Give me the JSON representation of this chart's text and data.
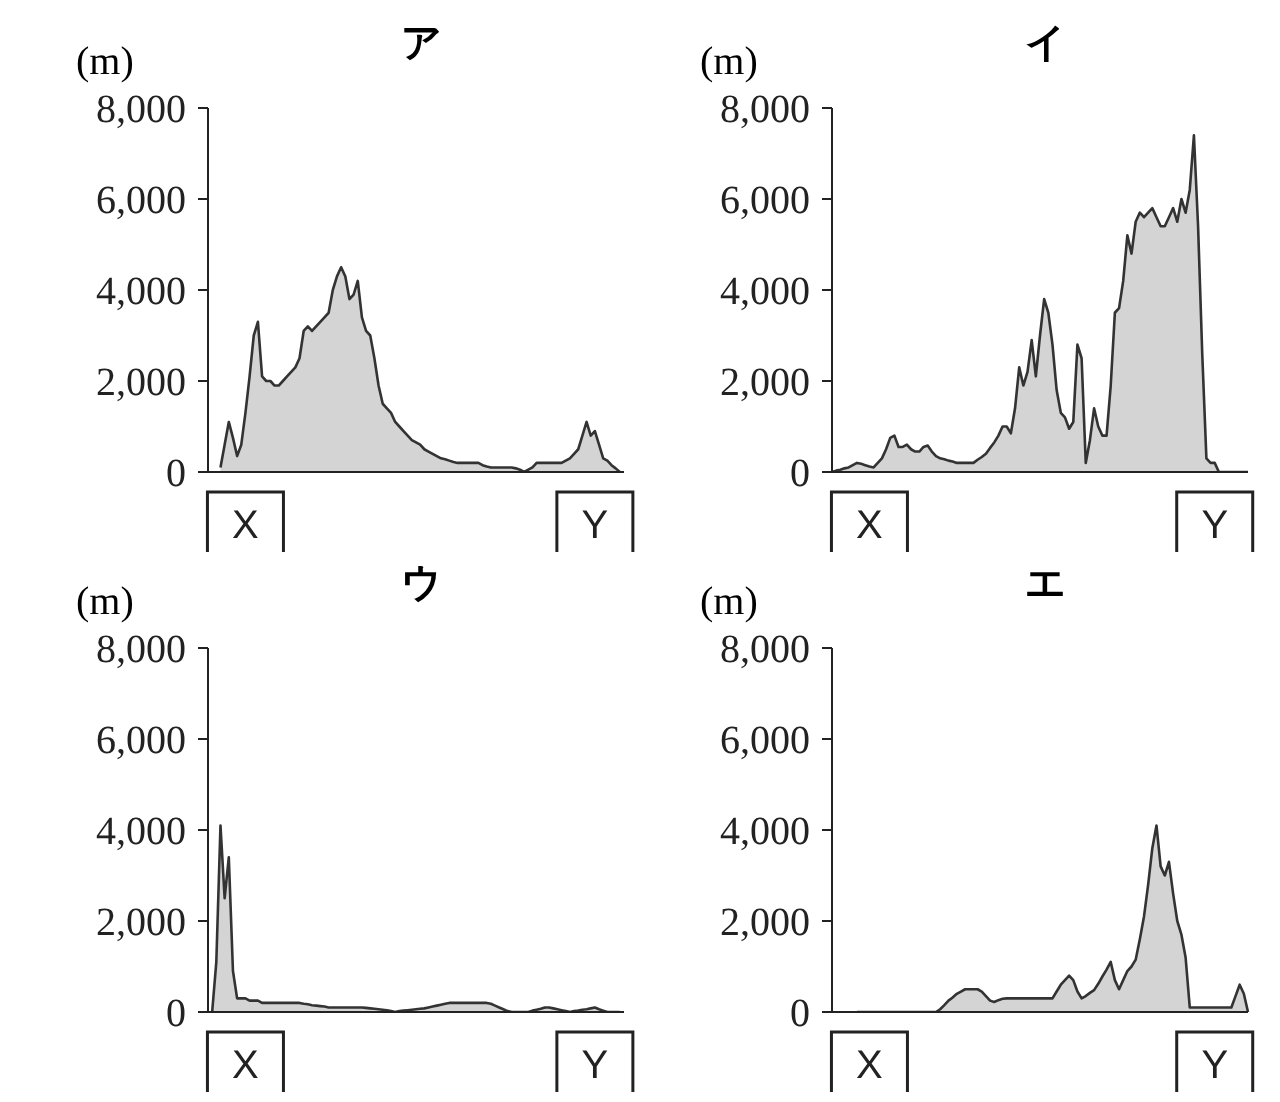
{
  "chart_data": [
    {
      "type": "area",
      "title": "ア",
      "ylabel": "(m)",
      "ylim": [
        0,
        8000
      ],
      "yticks": [
        {
          "value": 0,
          "label": "0"
        },
        {
          "value": 2000,
          "label": "2,000"
        },
        {
          "value": 4000,
          "label": "4,000"
        },
        {
          "value": 6000,
          "label": "6,000"
        },
        {
          "value": 8000,
          "label": "8,000"
        }
      ],
      "grid": false,
      "color": "#d4d4d4",
      "categories": [
        null,
        null,
        null,
        null,
        null,
        null,
        null,
        null,
        null,
        "X",
        null,
        null,
        null,
        null,
        null,
        null,
        null,
        null,
        null,
        null,
        null,
        null,
        null,
        null,
        null,
        null,
        null,
        null,
        null,
        null,
        null,
        null,
        null,
        null,
        null,
        null,
        null,
        null,
        null,
        null,
        null,
        null,
        null,
        null,
        null,
        null,
        null,
        null,
        null,
        null,
        null,
        null,
        null,
        null,
        null,
        null,
        null,
        null,
        null,
        null,
        null,
        null,
        null,
        null,
        null,
        null,
        null,
        null,
        null,
        null,
        null,
        null,
        null,
        null,
        null,
        null,
        null,
        null,
        null,
        null,
        null,
        null,
        null,
        null,
        null,
        null,
        null,
        null,
        null,
        null,
        null,
        null,
        null,
        "Y",
        null,
        null,
        null,
        null,
        null,
        null,
        null
      ],
      "values": [
        null,
        null,
        null,
        100,
        600,
        1100,
        750,
        350,
        600,
        1300,
        2100,
        3000,
        3300,
        2100,
        2000,
        2000,
        1900,
        1900,
        2000,
        2100,
        2200,
        2300,
        2500,
        3100,
        3200,
        3100,
        3200,
        3300,
        3400,
        3500,
        4000,
        4300,
        4500,
        4300,
        3800,
        3900,
        4200,
        3400,
        3100,
        3000,
        2500,
        1900,
        1500,
        1400,
        1300,
        1100,
        1000,
        900,
        800,
        700,
        650,
        600,
        500,
        450,
        400,
        350,
        300,
        280,
        250,
        220,
        200,
        200,
        200,
        200,
        200,
        200,
        150,
        120,
        100,
        100,
        100,
        100,
        100,
        100,
        80,
        50,
        0,
        50,
        100,
        200,
        200,
        200,
        200,
        200,
        200,
        200,
        250,
        300,
        400,
        500,
        800,
        1100,
        800,
        900,
        600,
        300,
        250,
        150,
        80,
        0,
        null
      ]
    },
    {
      "type": "area",
      "title": "イ",
      "ylabel": "(m)",
      "ylim": [
        0,
        8000
      ],
      "yticks": [
        {
          "value": 0,
          "label": "0"
        },
        {
          "value": 2000,
          "label": "2,000"
        },
        {
          "value": 4000,
          "label": "4,000"
        },
        {
          "value": 6000,
          "label": "6,000"
        },
        {
          "value": 8000,
          "label": "8,000"
        }
      ],
      "grid": false,
      "color": "#d4d4d4",
      "categories": [
        null,
        null,
        null,
        null,
        null,
        null,
        null,
        null,
        null,
        "X",
        null,
        null,
        null,
        null,
        null,
        null,
        null,
        null,
        null,
        null,
        null,
        null,
        null,
        null,
        null,
        null,
        null,
        null,
        null,
        null,
        null,
        null,
        null,
        null,
        null,
        null,
        null,
        null,
        null,
        null,
        null,
        null,
        null,
        null,
        null,
        null,
        null,
        null,
        null,
        null,
        null,
        null,
        null,
        null,
        null,
        null,
        null,
        null,
        null,
        null,
        null,
        null,
        null,
        null,
        null,
        null,
        null,
        null,
        null,
        null,
        null,
        null,
        null,
        null,
        null,
        null,
        null,
        null,
        null,
        null,
        null,
        null,
        null,
        null,
        null,
        null,
        null,
        null,
        null,
        null,
        null,
        null,
        "Y",
        null,
        null,
        null,
        null,
        null,
        null,
        null,
        null
      ],
      "values": [
        0,
        30,
        50,
        80,
        100,
        150,
        200,
        180,
        150,
        120,
        100,
        200,
        300,
        500,
        750,
        800,
        550,
        550,
        600,
        500,
        450,
        450,
        550,
        580,
        450,
        350,
        300,
        280,
        250,
        230,
        200,
        200,
        200,
        200,
        200,
        270,
        330,
        400,
        530,
        650,
        800,
        1000,
        1000,
        850,
        1400,
        2300,
        1900,
        2200,
        2900,
        2100,
        3000,
        3800,
        3500,
        2800,
        1800,
        1300,
        1200,
        950,
        1100,
        2800,
        2500,
        200,
        700,
        1400,
        1000,
        800,
        800,
        1900,
        3500,
        3600,
        4200,
        5200,
        4800,
        5500,
        5700,
        5600,
        5700,
        5800,
        5600,
        5400,
        5400,
        5600,
        5800,
        5500,
        6000,
        5700,
        6200,
        7400,
        5400,
        2600,
        300,
        200,
        200,
        0,
        0,
        0,
        0,
        0,
        0,
        0,
        0
      ]
    },
    {
      "type": "area",
      "title": "ウ",
      "ylabel": "(m)",
      "ylim": [
        0,
        8000
      ],
      "yticks": [
        {
          "value": 0,
          "label": "0"
        },
        {
          "value": 2000,
          "label": "2,000"
        },
        {
          "value": 4000,
          "label": "4,000"
        },
        {
          "value": 6000,
          "label": "6,000"
        },
        {
          "value": 8000,
          "label": "8,000"
        }
      ],
      "grid": false,
      "color": "#d4d4d4",
      "categories": [
        null,
        null,
        null,
        null,
        null,
        null,
        null,
        null,
        null,
        "X",
        null,
        null,
        null,
        null,
        null,
        null,
        null,
        null,
        null,
        null,
        null,
        null,
        null,
        null,
        null,
        null,
        null,
        null,
        null,
        null,
        null,
        null,
        null,
        null,
        null,
        null,
        null,
        null,
        null,
        null,
        null,
        null,
        null,
        null,
        null,
        null,
        null,
        null,
        null,
        null,
        null,
        null,
        null,
        null,
        null,
        null,
        null,
        null,
        null,
        null,
        null,
        null,
        null,
        null,
        null,
        null,
        null,
        null,
        null,
        null,
        null,
        null,
        null,
        null,
        null,
        null,
        null,
        null,
        null,
        null,
        null,
        null,
        null,
        null,
        null,
        null,
        null,
        null,
        null,
        null,
        null,
        null,
        null,
        "Y",
        null,
        null,
        null,
        null,
        null,
        null,
        null
      ],
      "values": [
        null,
        0,
        1100,
        4100,
        2500,
        3400,
        900,
        300,
        300,
        300,
        250,
        250,
        250,
        200,
        200,
        200,
        200,
        200,
        200,
        200,
        200,
        200,
        200,
        180,
        170,
        150,
        140,
        130,
        120,
        100,
        100,
        100,
        100,
        100,
        100,
        100,
        100,
        100,
        90,
        80,
        70,
        60,
        50,
        40,
        20,
        0,
        20,
        30,
        40,
        50,
        60,
        70,
        80,
        100,
        120,
        140,
        160,
        180,
        200,
        200,
        200,
        200,
        200,
        200,
        200,
        200,
        200,
        200,
        180,
        140,
        100,
        60,
        20,
        0,
        0,
        0,
        0,
        0,
        30,
        50,
        70,
        100,
        100,
        80,
        60,
        40,
        20,
        0,
        20,
        30,
        50,
        60,
        80,
        100,
        60,
        30,
        0,
        0,
        0,
        0,
        null
      ]
    },
    {
      "type": "area",
      "title": "エ",
      "ylabel": "(m)",
      "ylim": [
        0,
        8000
      ],
      "yticks": [
        {
          "value": 0,
          "label": "0"
        },
        {
          "value": 2000,
          "label": "2,000"
        },
        {
          "value": 4000,
          "label": "4,000"
        },
        {
          "value": 6000,
          "label": "6,000"
        },
        {
          "value": 8000,
          "label": "8,000"
        }
      ],
      "grid": false,
      "color": "#d4d4d4",
      "categories": [
        null,
        null,
        null,
        null,
        null,
        null,
        null,
        null,
        null,
        "X",
        null,
        null,
        null,
        null,
        null,
        null,
        null,
        null,
        null,
        null,
        null,
        null,
        null,
        null,
        null,
        null,
        null,
        null,
        null,
        null,
        null,
        null,
        null,
        null,
        null,
        null,
        null,
        null,
        null,
        null,
        null,
        null,
        null,
        null,
        null,
        null,
        null,
        null,
        null,
        null,
        null,
        null,
        null,
        null,
        null,
        null,
        null,
        null,
        null,
        null,
        null,
        null,
        null,
        null,
        null,
        null,
        null,
        null,
        null,
        null,
        null,
        null,
        null,
        null,
        null,
        null,
        null,
        null,
        null,
        null,
        null,
        null,
        null,
        null,
        null,
        null,
        null,
        null,
        null,
        null,
        null,
        null,
        "Y",
        null,
        null,
        null,
        null,
        null,
        null,
        null,
        null
      ],
      "values": [
        null,
        null,
        null,
        null,
        null,
        null,
        0,
        0,
        0,
        0,
        0,
        0,
        0,
        0,
        0,
        0,
        0,
        0,
        0,
        0,
        0,
        0,
        0,
        0,
        0,
        0,
        60,
        150,
        250,
        320,
        400,
        450,
        500,
        500,
        500,
        500,
        450,
        350,
        250,
        220,
        260,
        290,
        300,
        300,
        300,
        300,
        300,
        300,
        300,
        300,
        300,
        300,
        300,
        300,
        450,
        600,
        700,
        800,
        700,
        450,
        300,
        350,
        420,
        480,
        620,
        780,
        930,
        1100,
        700,
        500,
        700,
        900,
        1000,
        1150,
        1600,
        2100,
        2800,
        3600,
        4100,
        3200,
        3000,
        3300,
        2600,
        2000,
        1700,
        1200,
        100,
        100,
        100,
        100,
        100,
        100,
        100,
        100,
        100,
        100,
        100,
        350,
        600,
        400,
        0
      ]
    }
  ]
}
